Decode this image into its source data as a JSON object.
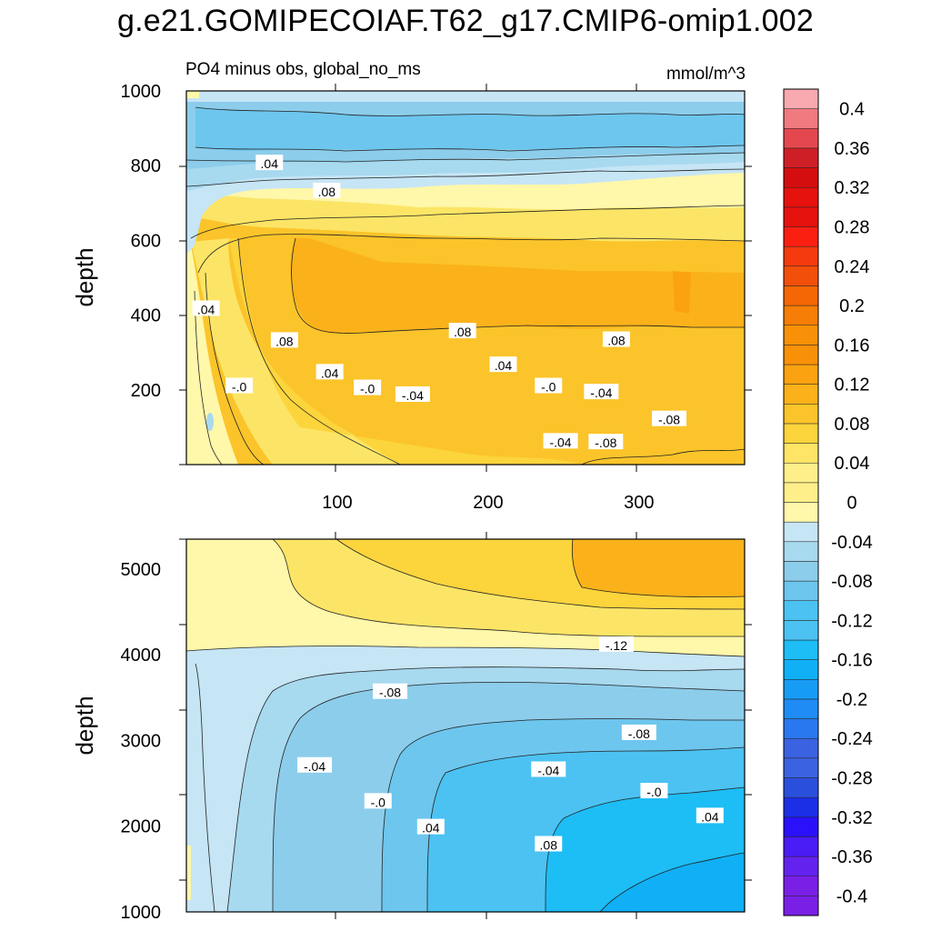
{
  "title": "g.e21.GOMIPECOIAF.T62_g17.CMIP6-omip1.002",
  "subtitle_left": "PO4 minus obs, global_no_ms",
  "subtitle_right": "mmol/m^3",
  "colors": {
    "bands": [
      "#7a1fe6",
      "#6422ee",
      "#4a1cf6",
      "#2a11fa",
      "#1b2fe6",
      "#2a4fdc",
      "#3b62e0",
      "#2a78f0",
      "#1f8cf5",
      "#179cf5",
      "#10b0f6",
      "#1dbdf6",
      "#4cc2f2",
      "#6dc6ee",
      "#8ccdeb",
      "#a7d9ef",
      "#c6e5f5",
      "#fff7aa",
      "#ffef8a",
      "#ffe566",
      "#fcd43c",
      "#fbc42a",
      "#fbb21a",
      "#fba210",
      "#f99108",
      "#f77e06",
      "#f56604",
      "#f24f0a",
      "#f43a0e",
      "#fb1f12",
      "#e6120e",
      "#d40e0e",
      "#cf1f26",
      "#e4484e",
      "#ef7a80",
      "#f8aab0"
    ]
  },
  "chart_data": [
    {
      "type": "heatmap",
      "panel": "upper",
      "title": "PO4 minus obs, global_no_ms",
      "units": "mmol/m^3",
      "xlabel": "",
      "ylabel": "depth",
      "xlim": [
        0,
        370
      ],
      "ylim": [
        1000,
        0
      ],
      "xticks": [
        100,
        200,
        300
      ],
      "yticks": [
        200,
        400,
        600,
        800,
        1000
      ],
      "contour_labels": [
        {
          "text": "-.04",
          "x": 248,
          "y": 60
        },
        {
          "text": "-.08",
          "x": 278,
          "y": 58
        },
        {
          "text": "-.08",
          "x": 320,
          "y": 120
        },
        {
          "text": "-.0",
          "x": 35,
          "y": 208
        },
        {
          "text": "-.0",
          "x": 120,
          "y": 203
        },
        {
          "text": "-.04",
          "x": 150,
          "y": 185
        },
        {
          "text": "-.0",
          "x": 240,
          "y": 208
        },
        {
          "text": "-.04",
          "x": 275,
          "y": 192
        },
        {
          "text": ".04",
          "x": 95,
          "y": 245
        },
        {
          "text": ".04",
          "x": 210,
          "y": 265
        },
        {
          "text": ".08",
          "x": 65,
          "y": 330
        },
        {
          "text": ".08",
          "x": 183,
          "y": 355
        },
        {
          "text": ".08",
          "x": 285,
          "y": 332
        },
        {
          "text": ".04",
          "x": 13,
          "y": 415
        },
        {
          "text": ".08",
          "x": 93,
          "y": 730
        },
        {
          "text": ".04",
          "x": 55,
          "y": 805
        }
      ]
    },
    {
      "type": "heatmap",
      "panel": "lower",
      "title": "",
      "units": "mmol/m^3",
      "xlabel": "",
      "ylabel": "depth",
      "xlim": [
        0,
        370
      ],
      "ylim": [
        5350,
        1000
      ],
      "xticks": [
        100,
        200,
        300
      ],
      "yticks": [
        1000,
        2000,
        3000,
        4000,
        5000
      ],
      "contour_labels": [
        {
          "text": ".08",
          "x": 240,
          "y": 1780
        },
        {
          "text": ".04",
          "x": 162,
          "y": 1980
        },
        {
          "text": ".04",
          "x": 347,
          "y": 2110
        },
        {
          "text": "-.0",
          "x": 127,
          "y": 2280
        },
        {
          "text": "-.0",
          "x": 310,
          "y": 2400
        },
        {
          "text": "-.04",
          "x": 85,
          "y": 2700
        },
        {
          "text": "-.04",
          "x": 240,
          "y": 2650
        },
        {
          "text": "-.08",
          "x": 300,
          "y": 3080
        },
        {
          "text": "-.08",
          "x": 135,
          "y": 3560
        },
        {
          "text": "-.12",
          "x": 285,
          "y": 4110
        }
      ]
    },
    {
      "type": "colorbar",
      "levels": [
        -0.42,
        -0.4,
        -0.38,
        -0.36,
        -0.34,
        -0.32,
        -0.3,
        -0.28,
        -0.26,
        -0.24,
        -0.22,
        -0.2,
        -0.18,
        -0.16,
        -0.14,
        -0.12,
        -0.1,
        -0.08,
        -0.06,
        -0.04,
        -0.02,
        0,
        0.02,
        0.04,
        0.06,
        0.08,
        0.1,
        0.12,
        0.14,
        0.16,
        0.18,
        0.2,
        0.22,
        0.24,
        0.26,
        0.28,
        0.3,
        0.32,
        0.34,
        0.36,
        0.38,
        0.4,
        0.42
      ],
      "tick_labels": [
        "0.4",
        "0.36",
        "0.32",
        "0.28",
        "0.24",
        "0.2",
        "0.16",
        "0.12",
        "0.08",
        "0.04",
        "0",
        "-0.04",
        "-0.08",
        "-0.12",
        "-0.16",
        "-0.2",
        "-0.24",
        "-0.28",
        "-0.32",
        "-0.36",
        "-0.4"
      ]
    }
  ]
}
